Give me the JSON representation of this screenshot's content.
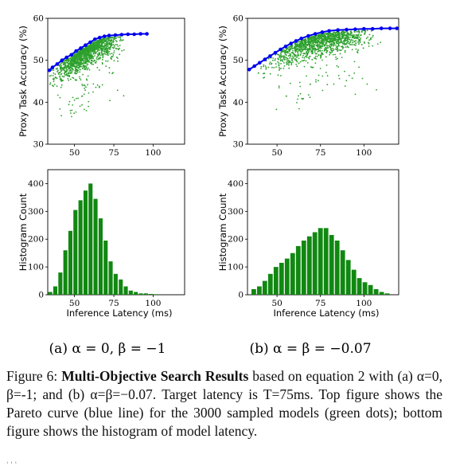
{
  "chart_data": [
    {
      "type": "scatter",
      "panel": "a-top",
      "ylabel": "Proxy Task Accuracy (%)",
      "xlim": [
        33,
        120
      ],
      "ylim": [
        30,
        60
      ],
      "xticks": [
        50,
        75,
        100
      ],
      "yticks": [
        30,
        40,
        50,
        60
      ],
      "pareto_color": "#0000ee",
      "points_color": "#2ca02c",
      "pareto": [
        [
          34,
          47.6
        ],
        [
          36,
          48.3
        ],
        [
          39,
          49.1
        ],
        [
          42,
          50.0
        ],
        [
          45,
          50.7
        ],
        [
          48,
          51.3
        ],
        [
          51,
          52.2
        ],
        [
          54,
          52.9
        ],
        [
          57,
          53.6
        ],
        [
          60,
          54.3
        ],
        [
          63,
          55.0
        ],
        [
          66,
          55.4
        ],
        [
          69,
          55.7
        ],
        [
          72,
          55.9
        ],
        [
          76,
          56.0
        ],
        [
          80,
          56.1
        ],
        [
          84,
          56.2
        ],
        [
          88,
          56.2
        ],
        [
          92,
          56.3
        ],
        [
          96,
          56.3
        ]
      ]
    },
    {
      "type": "scatter",
      "panel": "b-top",
      "ylabel": "Proxy Task Accuracy (%)",
      "xlim": [
        33,
        120
      ],
      "ylim": [
        30,
        60
      ],
      "xticks": [
        50,
        75,
        100
      ],
      "yticks": [
        30,
        40,
        50,
        60
      ],
      "pareto_color": "#0000ee",
      "points_color": "#2ca02c",
      "pareto": [
        [
          34,
          47.8
        ],
        [
          37,
          48.6
        ],
        [
          40,
          49.4
        ],
        [
          43,
          50.2
        ],
        [
          46,
          51.0
        ],
        [
          49,
          51.8
        ],
        [
          52,
          52.6
        ],
        [
          55,
          53.3
        ],
        [
          58,
          54.0
        ],
        [
          61,
          54.6
        ],
        [
          64,
          55.2
        ],
        [
          68,
          55.8
        ],
        [
          72,
          56.3
        ],
        [
          76,
          56.7
        ],
        [
          80,
          57.0
        ],
        [
          85,
          57.2
        ],
        [
          90,
          57.3
        ],
        [
          95,
          57.4
        ],
        [
          100,
          57.5
        ],
        [
          105,
          57.5
        ],
        [
          110,
          57.6
        ],
        [
          115,
          57.6
        ],
        [
          119,
          57.6
        ]
      ]
    },
    {
      "type": "bar",
      "panel": "a-bottom",
      "xlabel": "Inference Latency (ms)",
      "ylabel": "Histogram Count",
      "xlim": [
        33,
        120
      ],
      "ylim": [
        0,
        450
      ],
      "xticks": [
        50,
        75,
        100
      ],
      "yticks": [
        0,
        100,
        200,
        300,
        400
      ],
      "bar_color": "#118811",
      "bin_start": 33,
      "bin_width": 3.2,
      "values": [
        10,
        30,
        80,
        160,
        230,
        305,
        340,
        375,
        400,
        345,
        275,
        195,
        120,
        75,
        55,
        30,
        15,
        10,
        5,
        5,
        3,
        2
      ]
    },
    {
      "type": "bar",
      "panel": "b-bottom",
      "xlabel": "Inference Latency (ms)",
      "ylabel": "Histogram Count",
      "xlim": [
        33,
        120
      ],
      "ylim": [
        0,
        450
      ],
      "xticks": [
        50,
        75,
        100
      ],
      "yticks": [
        0,
        100,
        200,
        300,
        400
      ],
      "bar_color": "#118811",
      "bin_start": 35,
      "bin_width": 3.2,
      "values": [
        20,
        30,
        50,
        75,
        100,
        115,
        130,
        150,
        175,
        195,
        210,
        225,
        240,
        240,
        215,
        195,
        160,
        125,
        90,
        60,
        45,
        35,
        20,
        10,
        5
      ]
    }
  ],
  "subcaptions": {
    "a": "(a) α = 0, β = −1",
    "b": "(b) α = β = −0.07"
  },
  "caption": {
    "label": "Figure 6:",
    "bold": "Multi-Objective Search Results",
    "text": "based on equation 2 with (a) α=0, β=-1; and (b) α=β=−0.07. Target latency is T=75ms. Top figure shows the Pareto curve (blue line) for the 3000 sampled models (green dots); bottom figure shows the histogram of model latency."
  },
  "trail_text": "' ' '"
}
